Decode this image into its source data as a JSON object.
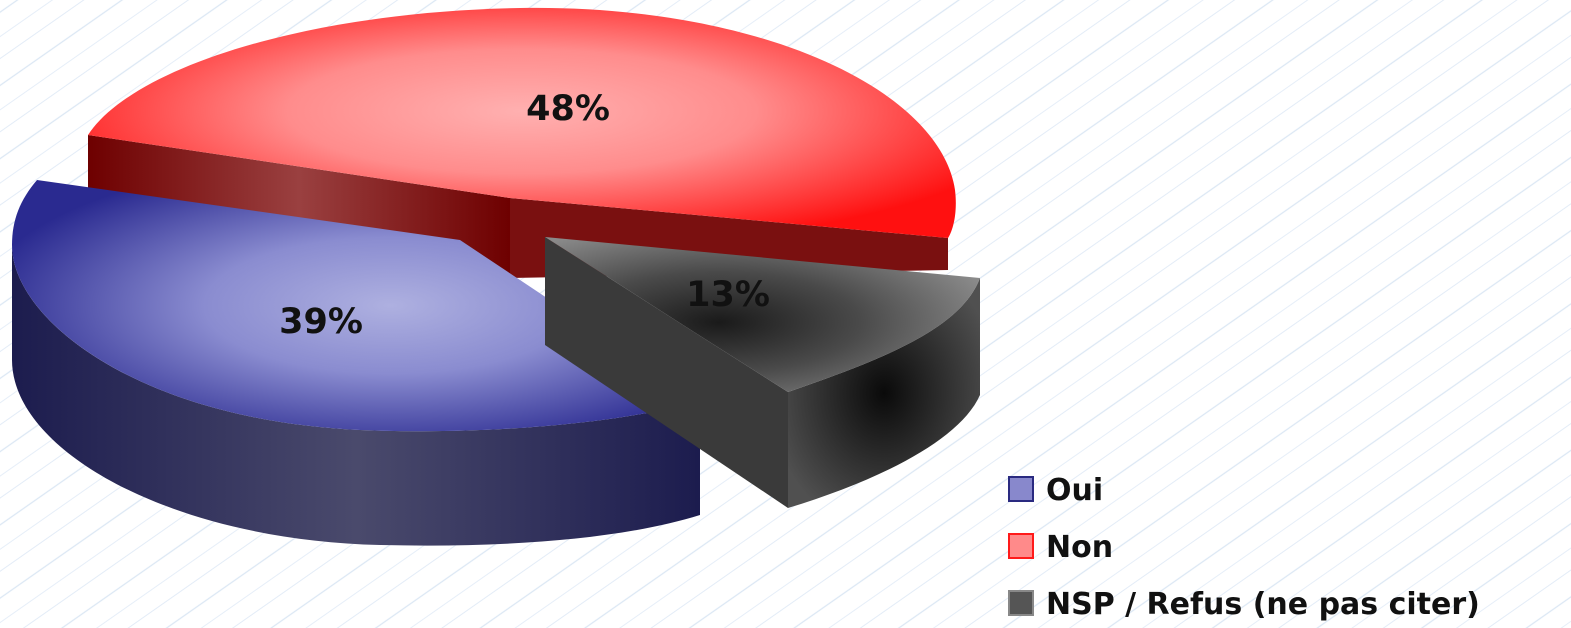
{
  "chart_data": {
    "type": "pie",
    "style": "3d-exploded",
    "slices": [
      {
        "label": "Oui",
        "value": 39,
        "display": "39%",
        "color": "#3a3aa0"
      },
      {
        "label": "Non",
        "value": 48,
        "display": "48%",
        "color": "#ff1a1a"
      },
      {
        "label": "NSP / Refus (ne pas citer)",
        "value": 13,
        "display": "13%",
        "color": "#4a4a4a"
      }
    ],
    "legend_position": "bottom-right",
    "background": "light blue diagonal line texture"
  }
}
